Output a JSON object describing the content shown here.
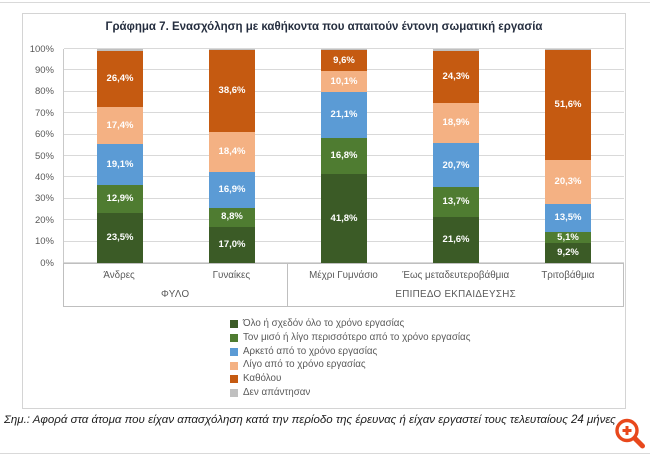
{
  "footnote": "Σημ.: Αφορά στα άτομα που είχαν απασχόληση κατά την περίοδο της έρευνας ή είχαν εργαστεί τους τελευταίους 24 μήνες",
  "colors": {
    "grid": "#d9d9d9",
    "axis": "#bfbfbf",
    "tick_text": "#595959",
    "title_text": "#252e3f",
    "zoom_icon": "#e8481c"
  },
  "icons": {
    "bottom_right": "zoom-in-magnifier"
  },
  "chart_data": {
    "type": "bar",
    "variant": "stacked-100-percent-column",
    "title": "Γράφημα 7. Ενασχόληση με καθήκοντα που απαιτούν έντονη σωματική εργασία",
    "xlabel": "",
    "ylabel": "",
    "ylim": [
      0,
      100
    ],
    "y_ticks": [
      "0%",
      "10%",
      "20%",
      "30%",
      "40%",
      "50%",
      "60%",
      "70%",
      "80%",
      "90%",
      "100%"
    ],
    "grid": true,
    "legend_position": "bottom",
    "categories": [
      "Άνδρες",
      "Γυναίκες",
      "Μέχρι Γυμνάσιο",
      "Έως μεταδευτεροβάθμια",
      "Τριτοβάθμια"
    ],
    "category_groups": [
      {
        "label": "ΦΥΛΟ",
        "span": 2
      },
      {
        "label": "ΕΠΙΠΕΔΟ ΕΚΠΑΙΔΕΥΣΗΣ",
        "span": 3
      }
    ],
    "series": [
      {
        "name": "Όλο ή σχεδόν όλο το χρόνο εργασίας",
        "color": "#3b5b26",
        "values": [
          23.5,
          17.0,
          41.8,
          21.6,
          9.2
        ],
        "labels": [
          "23,5%",
          "17,0%",
          "41,8%",
          "21,6%",
          "9,2%"
        ]
      },
      {
        "name": "Τον μισό ή λίγο περισσότερο από το χρόνο εργασίας",
        "color": "#4f7c31",
        "values": [
          12.9,
          8.8,
          16.8,
          13.7,
          5.1
        ],
        "labels": [
          "12,9%",
          "8,8%",
          "16,8%",
          "13,7%",
          "5,1%"
        ]
      },
      {
        "name": "Αρκετό από το χρόνο εργασίας",
        "color": "#5b9bd5",
        "values": [
          19.1,
          16.9,
          21.1,
          20.7,
          13.5
        ],
        "labels": [
          "19,1%",
          "16,9%",
          "21,1%",
          "20,7%",
          "13,5%"
        ]
      },
      {
        "name": "Λίγο από το χρόνο εργασίας",
        "color": "#f4b183",
        "values": [
          17.4,
          18.4,
          10.1,
          18.9,
          20.3
        ],
        "labels": [
          "17,4%",
          "18,4%",
          "10,1%",
          "18,9%",
          "20,3%"
        ]
      },
      {
        "name": "Καθόλου",
        "color": "#c55a11",
        "values": [
          26.4,
          38.6,
          9.6,
          24.3,
          51.6
        ],
        "labels": [
          "26,4%",
          "38,6%",
          "9,6%",
          "24,3%",
          "51,6%"
        ]
      },
      {
        "name": "Δεν απάντησαν",
        "color": "#c0c0c0",
        "values": [
          0.7,
          0.3,
          0.6,
          0.8,
          0.3
        ],
        "labels": [
          "",
          "",
          "",
          "",
          ""
        ]
      }
    ]
  }
}
